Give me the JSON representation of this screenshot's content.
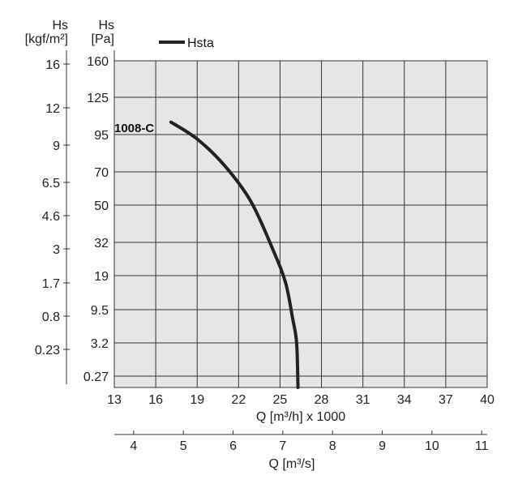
{
  "chart_data": {
    "type": "line",
    "left_axis_outer": {
      "title_line1": "Hs",
      "title_line2": "[kgf/m²]",
      "ticks": [
        "16",
        "12",
        "9",
        "6.5",
        "4.6",
        "3",
        "1.7",
        "0.8",
        "0.23"
      ]
    },
    "left_axis_inner": {
      "title_line1": "Hs",
      "title_line2": "[Pa]",
      "ticks": [
        "160",
        "125",
        "95",
        "70",
        "50",
        "32",
        "19",
        "9.5",
        "3.2",
        "0.27"
      ]
    },
    "x_axis_primary": {
      "title": "Q [m³/h] x 1000",
      "ticks": [
        "13",
        "16",
        "19",
        "22",
        "25",
        "28",
        "31",
        "34",
        "37",
        "40"
      ]
    },
    "x_axis_secondary": {
      "title": "Q [m³/s]",
      "ticks": [
        "4",
        "5",
        "6",
        "7",
        "8",
        "9",
        "10",
        "11"
      ]
    },
    "legend": {
      "placement": "top-left",
      "entries": [
        {
          "name": "Hsta",
          "color": "#222222"
        }
      ]
    },
    "series": [
      {
        "name": "1008-C",
        "color": "#222222",
        "points": [
          {
            "q": 17.1,
            "hs": 105
          },
          {
            "q": 19.0,
            "hs": 92
          },
          {
            "q": 21.0,
            "hs": 74
          },
          {
            "q": 22.9,
            "hs": 52
          },
          {
            "q": 24.5,
            "hs": 29
          },
          {
            "q": 25.4,
            "hs": 17
          },
          {
            "q": 25.9,
            "hs": 8
          },
          {
            "q": 26.2,
            "hs": 3.2
          },
          {
            "q": 26.3,
            "hs": 0
          }
        ]
      }
    ],
    "grid": true,
    "plot_background": "#e6e6e6"
  }
}
